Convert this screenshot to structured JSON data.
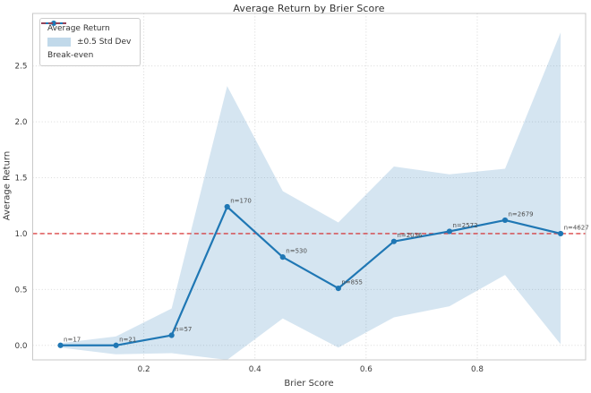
{
  "window": {
    "title": "Average Return by Brier Score"
  },
  "chart_data": {
    "type": "line",
    "title": "Average Return by Brier Score",
    "xlabel": "Brier Score",
    "ylabel": "Average Return",
    "xlim": [
      0.0,
      0.995
    ],
    "ylim": [
      -0.13,
      2.97
    ],
    "x_ticks": [
      "0.2",
      "0.4",
      "0.6",
      "0.8"
    ],
    "y_ticks": [
      "0.0",
      "0.5",
      "1.0",
      "1.5",
      "2.0",
      "2.5"
    ],
    "grid": true,
    "x": [
      0.05,
      0.15,
      0.25,
      0.35,
      0.45,
      0.55,
      0.65,
      0.75,
      0.85,
      0.95
    ],
    "series": [
      {
        "name": "Average Return",
        "color": "#1f77b4",
        "marker": "circle",
        "values": [
          0.0,
          0.0,
          0.09,
          1.24,
          0.79,
          0.51,
          0.93,
          1.02,
          1.12,
          1.0
        ]
      }
    ],
    "point_labels": [
      "n=17",
      "n=21",
      "n=57",
      "n=170",
      "n=530",
      "n=855",
      "n=2036",
      "n=2572",
      "n=2679",
      "n=4627"
    ],
    "band": {
      "label": "±0.5 Std Dev",
      "color": "#1f77b4",
      "opacity": 0.19,
      "upper": [
        0.02,
        0.08,
        0.33,
        2.32,
        1.38,
        1.1,
        1.6,
        1.53,
        1.58,
        2.8
      ],
      "lower": [
        -0.02,
        -0.08,
        -0.07,
        -0.13,
        0.24,
        -0.02,
        0.25,
        0.35,
        0.63,
        0.01
      ]
    },
    "break_even": {
      "label": "Break-even",
      "y": 1.0,
      "color": "#d62728",
      "style": "dashed"
    },
    "legend": {
      "position": "upper left",
      "entries": [
        "Average Return",
        "±0.5 Std Dev",
        "Break-even"
      ]
    },
    "style": {
      "grid_color": "#d4d4d4",
      "spine_color": "#c8c8c8",
      "tick_color": "#3b3b3b",
      "annotation_color": "#4d4d4d"
    }
  }
}
